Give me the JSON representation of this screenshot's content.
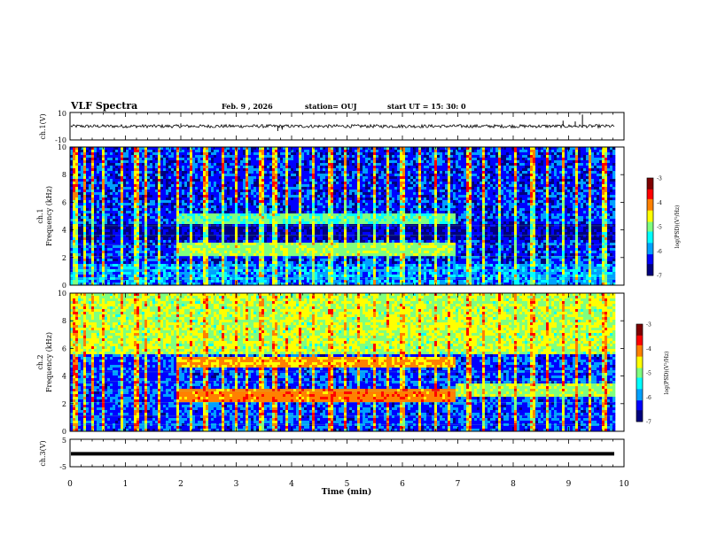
{
  "header": {
    "title": "VLF Spectra",
    "date": "Feb. 9  , 2026",
    "station": "station= OUJ",
    "start": "start  UT =   15: 30: 0"
  },
  "colors": {
    "colormap": [
      "#00007f",
      "#0000ff",
      "#00a0ff",
      "#00ffff",
      "#7fff7f",
      "#ffff00",
      "#ff8000",
      "#ff0000",
      "#7f0000"
    ],
    "trace": "#000000",
    "frame": "#000000"
  },
  "chart_data": [
    {
      "id": "ch1-waveform",
      "type": "line",
      "ylabel": "ch.1(V)",
      "ylim": [
        -10,
        10
      ],
      "yticks": [
        "10",
        "-10"
      ],
      "xlim": [
        0,
        10
      ],
      "description_values": {
        "baseline": 0,
        "typical_amplitude": 1.2,
        "max_spike": 8.5
      },
      "spikes": [
        {
          "x": 2.0,
          "y": 2.0
        },
        {
          "x": 3.75,
          "y": -3.5
        },
        {
          "x": 3.83,
          "y": -2.5
        },
        {
          "x": 8.9,
          "y": 4.0
        },
        {
          "x": 9.12,
          "y": 3.5
        },
        {
          "x": 9.25,
          "y": 8.5
        }
      ]
    },
    {
      "id": "ch1-spectrogram",
      "type": "heatmap",
      "ylabel": "ch.1\nFrequency (kHz)",
      "ylabel_line1": "ch.1",
      "ylabel_line2": "Frequency (kHz)",
      "ylim": [
        0,
        10
      ],
      "yticks": [
        "0",
        "2",
        "4",
        "6",
        "8",
        "10"
      ],
      "xlim": [
        0,
        10
      ],
      "colorbar": {
        "label": "log(PSD)(V²/Hz)",
        "range": [
          -7,
          -3
        ],
        "ticks": [
          "-3",
          "-4",
          "-5",
          "-6",
          "-7"
        ]
      },
      "bands": [
        {
          "t_start": 1.9,
          "t_end": 6.95,
          "freq_khz": 4.8,
          "log_psd": -5.2
        },
        {
          "t_start": 1.9,
          "t_end": 6.95,
          "freq_khz": 2.6,
          "log_psd": -4.9
        }
      ],
      "background_log_psd": -6.3,
      "impulse_times_min": [
        0.1,
        0.25,
        0.4,
        0.6,
        0.95,
        1.2,
        1.35,
        1.6,
        1.95,
        2.2,
        2.45,
        2.75,
        3.0,
        3.2,
        3.45,
        3.7,
        3.9,
        4.15,
        4.4,
        4.7,
        4.95,
        5.2,
        5.5,
        5.75,
        6.0,
        6.3,
        6.6,
        6.85,
        7.2,
        7.45,
        7.75,
        8.05,
        8.35,
        8.6,
        8.9,
        9.15,
        9.4,
        9.65
      ]
    },
    {
      "id": "ch2-spectrogram",
      "type": "heatmap",
      "ylabel": "ch.2\nFrequency (kHz)",
      "ylabel_line1": "ch.2",
      "ylabel_line2": "Frequency (kHz)",
      "ylim": [
        0,
        10
      ],
      "yticks": [
        "0",
        "2",
        "4",
        "6",
        "8",
        "10"
      ],
      "xlim": [
        0,
        10
      ],
      "colorbar": {
        "label": "log(PSD)(V²/Hz)",
        "range": [
          -7,
          -3
        ],
        "ticks": [
          "-3",
          "-4",
          "-5",
          "-6",
          "-7"
        ]
      },
      "bands": [
        {
          "t_start": 1.9,
          "t_end": 6.95,
          "freq_khz": 5.0,
          "log_psd": -4.3
        },
        {
          "t_start": 1.9,
          "t_end": 6.95,
          "freq_khz": 2.6,
          "log_psd": -4.1
        },
        {
          "t_start": 6.95,
          "t_end": 9.85,
          "freq_khz": 3.0,
          "log_psd": -4.9
        }
      ],
      "background_high_freq_log_psd": -4.8,
      "background_low_freq_log_psd": -6.2
    },
    {
      "id": "ch3-waveform",
      "type": "line",
      "ylabel": "ch.3(V)",
      "ylim": [
        -5,
        5
      ],
      "yticks": [
        "5",
        "-5"
      ],
      "xlim": [
        0,
        10
      ],
      "constant_value": -0.3
    }
  ],
  "xaxis": {
    "label": "Time  (min)",
    "ticks": [
      "0",
      "1",
      "2",
      "3",
      "4",
      "5",
      "6",
      "7",
      "8",
      "9",
      "10"
    ]
  }
}
